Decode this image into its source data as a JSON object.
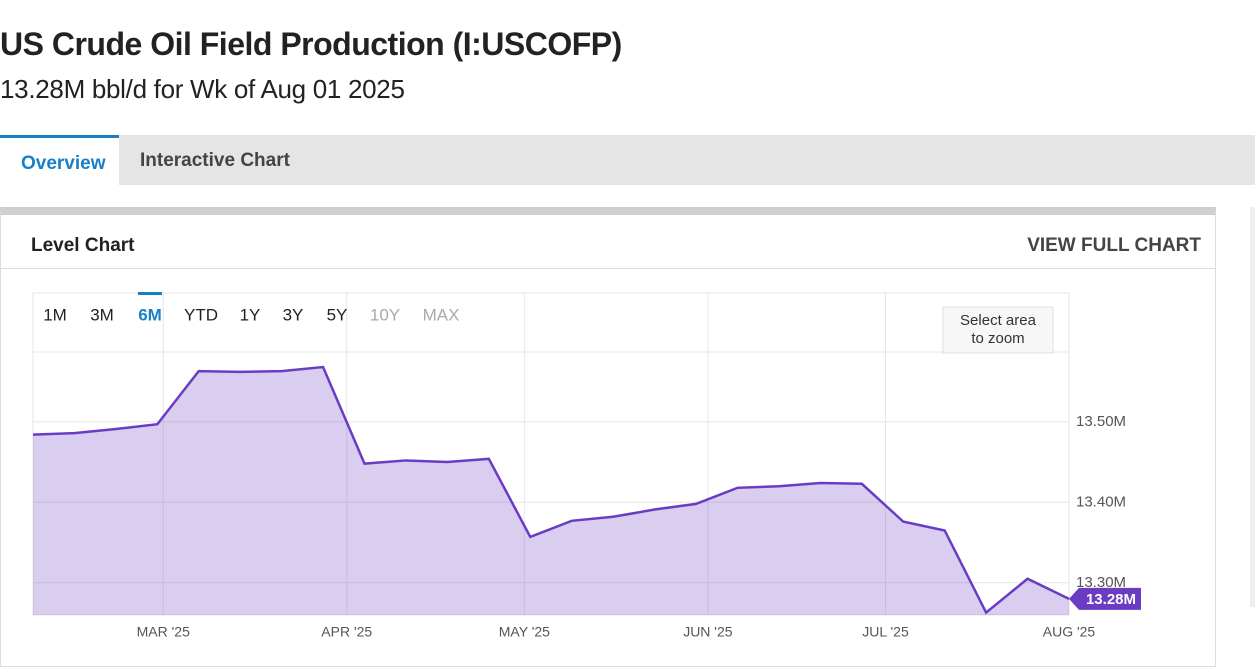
{
  "header": {
    "title": "US Crude Oil Field Production (I:USCOFP)",
    "subtitle": "13.28M bbl/d for Wk of Aug 01 2025"
  },
  "tabs": [
    "Overview",
    "Interactive Chart"
  ],
  "card": {
    "title": "Level Chart",
    "link": "VIEW FULL CHART"
  },
  "range_buttons": [
    "1M",
    "3M",
    "6M",
    "YTD",
    "1Y",
    "3Y",
    "5Y",
    "10Y",
    "MAX"
  ],
  "zoom_hint": "Select area to zoom",
  "chart_data": {
    "type": "area",
    "x": [
      "2025-02-07",
      "2025-02-14",
      "2025-02-21",
      "2025-02-28",
      "2025-03-07",
      "2025-03-14",
      "2025-03-21",
      "2025-03-28",
      "2025-04-04",
      "2025-04-11",
      "2025-04-18",
      "2025-04-25",
      "2025-05-02",
      "2025-05-09",
      "2025-05-16",
      "2025-05-23",
      "2025-05-30",
      "2025-06-06",
      "2025-06-13",
      "2025-06-20",
      "2025-06-27",
      "2025-07-04",
      "2025-07-11",
      "2025-07-18",
      "2025-07-25",
      "2025-08-01"
    ],
    "series": [
      {
        "name": "US Crude Oil Field Production",
        "color": "#6a3cc4",
        "values": [
          13.484,
          13.486,
          13.491,
          13.497,
          13.563,
          13.562,
          13.563,
          13.568,
          13.448,
          13.452,
          13.45,
          13.454,
          13.357,
          13.377,
          13.382,
          13.391,
          13.398,
          13.418,
          13.42,
          13.424,
          13.423,
          13.376,
          13.365,
          13.263,
          13.305,
          13.28
        ],
        "value_labels": [
          null,
          null,
          null,
          null,
          null,
          null,
          null,
          null,
          null,
          null,
          null,
          null,
          null,
          null,
          null,
          null,
          null,
          null,
          null,
          null,
          null,
          null,
          null,
          null,
          null,
          "13.28M"
        ]
      }
    ],
    "xlim": [
      "2025-02-07",
      "2025-08-01"
    ],
    "xticks": [
      {
        "value": "2025-03-01",
        "label": "MAR '25"
      },
      {
        "value": "2025-04-01",
        "label": "APR '25"
      },
      {
        "value": "2025-05-01",
        "label": "MAY '25"
      },
      {
        "value": "2025-06-01",
        "label": "JUN '25"
      },
      {
        "value": "2025-07-01",
        "label": "JUL '25"
      },
      {
        "value": "2025-08-01",
        "label": "AUG '25"
      }
    ],
    "ylim": [
      13.26,
      13.66
    ],
    "yticks": [
      {
        "value": 13.3,
        "label": "13.30M"
      },
      {
        "value": 13.4,
        "label": "13.40M"
      },
      {
        "value": 13.5,
        "label": "13.50M"
      }
    ],
    "grid": true
  }
}
